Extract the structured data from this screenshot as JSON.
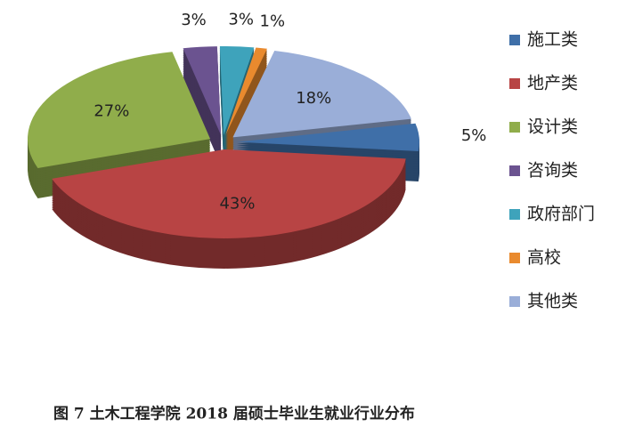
{
  "chart_data": {
    "type": "pie",
    "title": "图 7  土木工程学院 2018 届硕士毕业生就业行业分布",
    "categories": [
      "施工类",
      "地产类",
      "设计类",
      "咨询类",
      "政府部门",
      "高校",
      "其他类"
    ],
    "values": [
      5,
      43,
      27,
      3,
      3,
      1,
      18
    ],
    "value_labels": [
      "5%",
      "43%",
      "27%",
      "3%",
      "3%",
      "1%",
      "18%"
    ],
    "colors": [
      "#3f6fa8",
      "#b84444",
      "#90ad4b",
      "#6b5390",
      "#3ea3bb",
      "#e98a2e",
      "#9aaed8"
    ],
    "legend": "right"
  }
}
